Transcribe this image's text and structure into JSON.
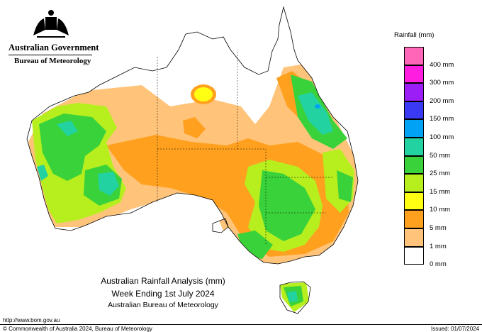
{
  "header": {
    "government": "Australian Government",
    "bureau": "Bureau of Meteorology",
    "crest_icon": "coat-of-arms-icon"
  },
  "legend": {
    "title": "Rainfall (mm)",
    "entries": [
      {
        "label": "400 mm",
        "color": "#ff66b8"
      },
      {
        "label": "300 mm",
        "color": "#ff1ee0"
      },
      {
        "label": "200 mm",
        "color": "#9a1ef5"
      },
      {
        "label": "150 mm",
        "color": "#3a3af5"
      },
      {
        "label": "100 mm",
        "color": "#00a2f5"
      },
      {
        "label": "50 mm",
        "color": "#22d2a0"
      },
      {
        "label": "25 mm",
        "color": "#3ad23a"
      },
      {
        "label": "15 mm",
        "color": "#b6ee1e"
      },
      {
        "label": "10 mm",
        "color": "#ffff14"
      },
      {
        "label": "5 mm",
        "color": "#ffa01e"
      },
      {
        "label": "1 mm",
        "color": "#ffc47a"
      },
      {
        "label": "0 mm",
        "color": "#ffffff"
      }
    ]
  },
  "caption": {
    "line1": "Australian Rainfall Analysis (mm)",
    "line2": "Week Ending 1st July 2024",
    "line3": "Australian Bureau of Meteorology"
  },
  "footer": {
    "url": "http://www.bom.gov.au",
    "copyright": "© Commonwealth of Australia 2024, Bureau of Meteorology",
    "issued": "Issued: 01/07/2024"
  }
}
